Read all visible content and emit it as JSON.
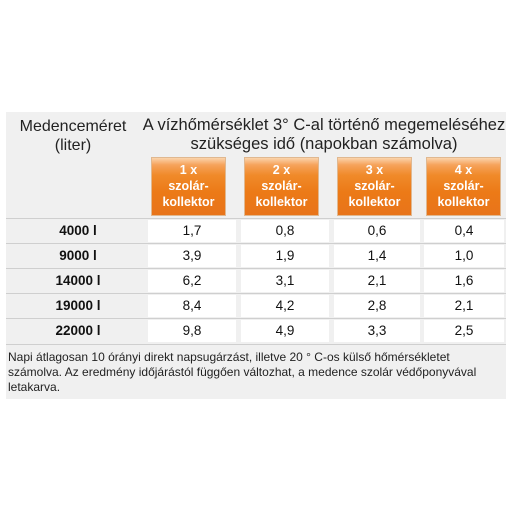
{
  "table": {
    "pool_label_line1": "Medenceméret",
    "pool_label_line2": "(liter)",
    "heading_line1": "A vízhőmérséklet 3° C-al történő megemeléséhez",
    "heading_line2": "szükséges idő (napokban számolva)",
    "columns": [
      {
        "count": "1 x",
        "line2": "szolár-",
        "line3": "kollektor"
      },
      {
        "count": "2 x",
        "line2": "szolár-",
        "line3": "kollektor"
      },
      {
        "count": "3 x",
        "line2": "szolár-",
        "line3": "kollektor"
      },
      {
        "count": "4 x",
        "line2": "szolár-",
        "line3": "kollektor"
      }
    ],
    "rows": [
      {
        "size": "4000 l",
        "values": [
          "1,7",
          "0,8",
          "0,6",
          "0,4"
        ]
      },
      {
        "size": "9000 l",
        "values": [
          "3,9",
          "1,9",
          "1,4",
          "1,0"
        ]
      },
      {
        "size": "14000 l",
        "values": [
          "6,2",
          "3,1",
          "2,1",
          "1,6"
        ]
      },
      {
        "size": "19000 l",
        "values": [
          "8,4",
          "4,2",
          "2,8",
          "2,1"
        ]
      },
      {
        "size": "22000 l",
        "values": [
          "9,8",
          "4,9",
          "3,3",
          "2,5"
        ]
      }
    ],
    "footnote": "Napi átlagosan 10 órányi direkt napsugárzást, illetve 20 ° C-os külső hőmérsékletet számolva. Az eredmény időjárástól függően változhat, a medence szolár védőponyvával letakarva."
  }
}
